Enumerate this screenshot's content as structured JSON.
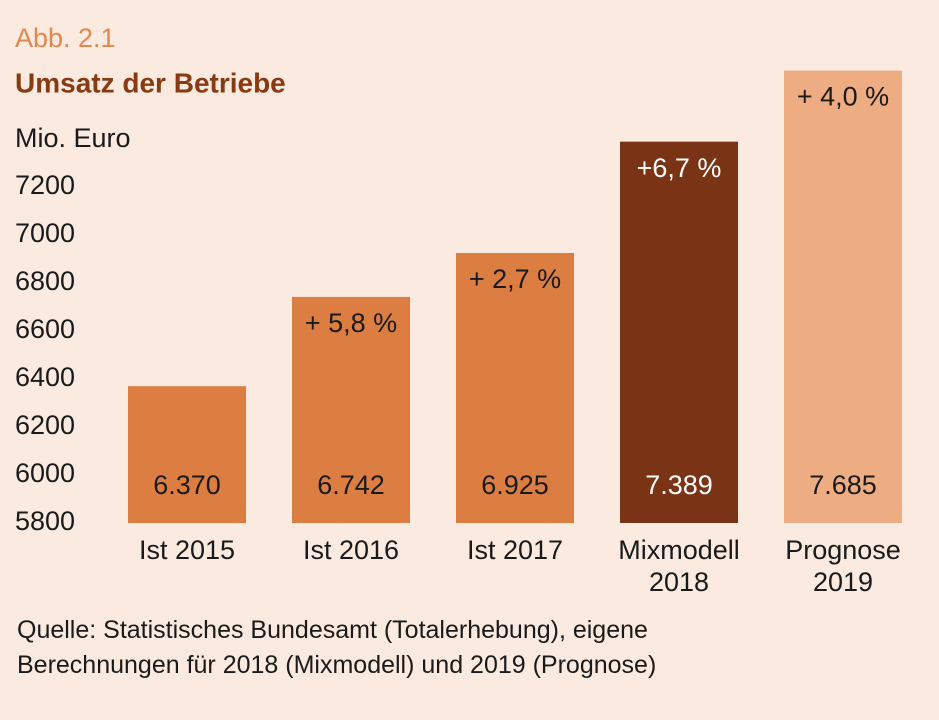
{
  "chart_data": {
    "type": "bar",
    "label": "Abb. 2.1",
    "title": "Umsatz der Betriebe",
    "y_label": "Mio. Euro",
    "categories": [
      "Ist 2015",
      "Ist 2016",
      "Ist 2017",
      "Mixmodell 2018",
      "Prognose 2019"
    ],
    "values": [
      6370,
      6742,
      6925,
      7389,
      7685
    ],
    "value_labels": [
      "6.370",
      "6.742",
      "6.925",
      "7.389",
      "7.685"
    ],
    "growth_labels": [
      null,
      "+ 5,8 %",
      "+ 2,7 %",
      "+6,7 %",
      "+ 4,0 %"
    ],
    "colors": [
      "#dc7d42",
      "#dc7d42",
      "#dc7d42",
      "#7a3415",
      "#eeac82"
    ],
    "ylim": [
      5800,
      7700
    ],
    "yticks": [
      5800,
      6000,
      6200,
      6400,
      6600,
      6800,
      7000,
      7200
    ],
    "grid": false,
    "source": [
      "Quelle: Statistisches Bundesamt (Totalerhebung), eigene",
      "Berechnungen für 2018 (Mixmodell) und 2019 (Prognose)"
    ]
  }
}
